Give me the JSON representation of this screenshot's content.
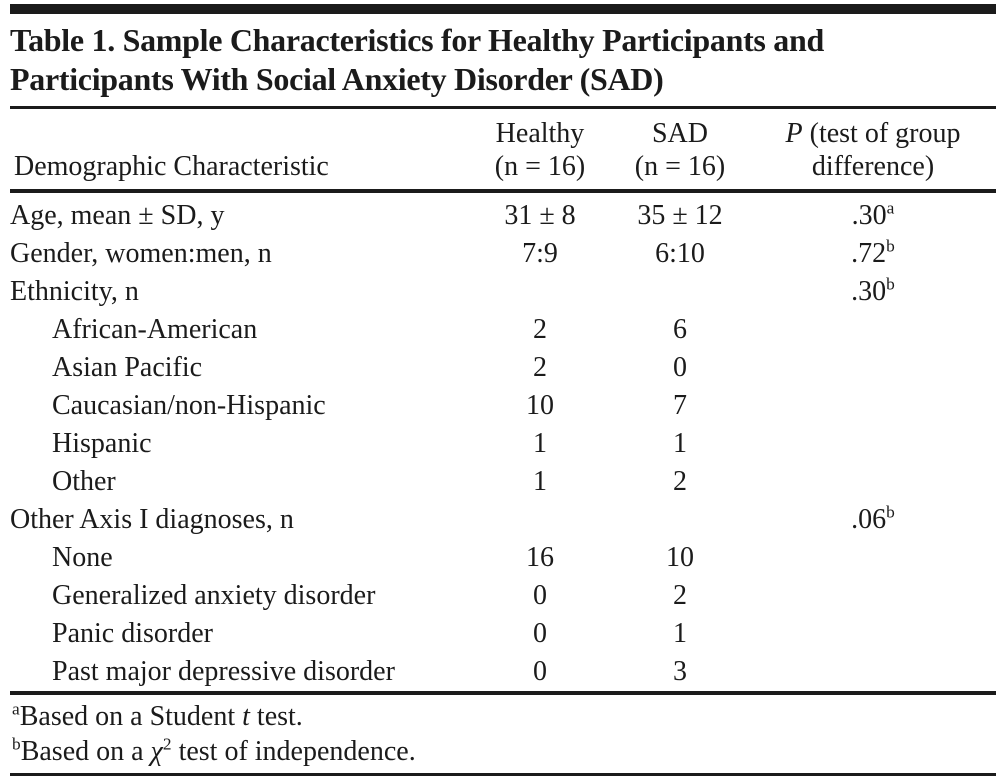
{
  "table": {
    "title_line1": "Table 1. Sample Characteristics for Healthy Participants and",
    "title_line2": "Participants With Social Anxiety Disorder (SAD)",
    "header": {
      "characteristic": "Demographic Characteristic",
      "healthy_line1": "Healthy",
      "healthy_line2": "(n = 16)",
      "sad_line1": "SAD",
      "sad_line2": "(n = 16)",
      "p_italic": "P",
      "p_rest": " (test of group",
      "p_line2": "difference)"
    },
    "rows": [
      {
        "label": "Age, mean ± SD, y",
        "indent": false,
        "healthy": "31 ± 8",
        "sad": "35 ± 12",
        "p": ".30",
        "p_sup": "a"
      },
      {
        "label": "Gender, women:men, n",
        "indent": false,
        "healthy": "7:9",
        "sad": "6:10",
        "p": ".72",
        "p_sup": "b"
      },
      {
        "label": "Ethnicity, n",
        "indent": false,
        "healthy": "",
        "sad": "",
        "p": ".30",
        "p_sup": "b"
      },
      {
        "label": "African-American",
        "indent": true,
        "healthy": "2",
        "sad": "6",
        "p": "",
        "p_sup": ""
      },
      {
        "label": "Asian Pacific",
        "indent": true,
        "healthy": "2",
        "sad": "0",
        "p": "",
        "p_sup": ""
      },
      {
        "label": "Caucasian/non-Hispanic",
        "indent": true,
        "healthy": "10",
        "sad": "7",
        "p": "",
        "p_sup": ""
      },
      {
        "label": "Hispanic",
        "indent": true,
        "healthy": "1",
        "sad": "1",
        "p": "",
        "p_sup": ""
      },
      {
        "label": "Other",
        "indent": true,
        "healthy": "1",
        "sad": "2",
        "p": "",
        "p_sup": ""
      },
      {
        "label": "Other Axis I diagnoses, n",
        "indent": false,
        "healthy": "",
        "sad": "",
        "p": ".06",
        "p_sup": "b"
      },
      {
        "label": "None",
        "indent": true,
        "healthy": "16",
        "sad": "10",
        "p": "",
        "p_sup": ""
      },
      {
        "label": "Generalized anxiety disorder",
        "indent": true,
        "healthy": "0",
        "sad": "2",
        "p": "",
        "p_sup": ""
      },
      {
        "label": "Panic disorder",
        "indent": true,
        "healthy": "0",
        "sad": "1",
        "p": "",
        "p_sup": ""
      },
      {
        "label": "Past major depressive disorder",
        "indent": true,
        "healthy": "0",
        "sad": "3",
        "p": "",
        "p_sup": ""
      }
    ],
    "footnotes": [
      {
        "sup": "a",
        "pre": "Based on a Student ",
        "em": "t",
        "em_sup": "",
        "post": " test."
      },
      {
        "sup": "b",
        "pre": "Based on a ",
        "em": "χ",
        "em_sup": "2",
        "post": " test of independence."
      }
    ]
  },
  "colors": {
    "text": "#1b1b1b",
    "rule": "#1b1b1b",
    "background": "#ffffff"
  }
}
